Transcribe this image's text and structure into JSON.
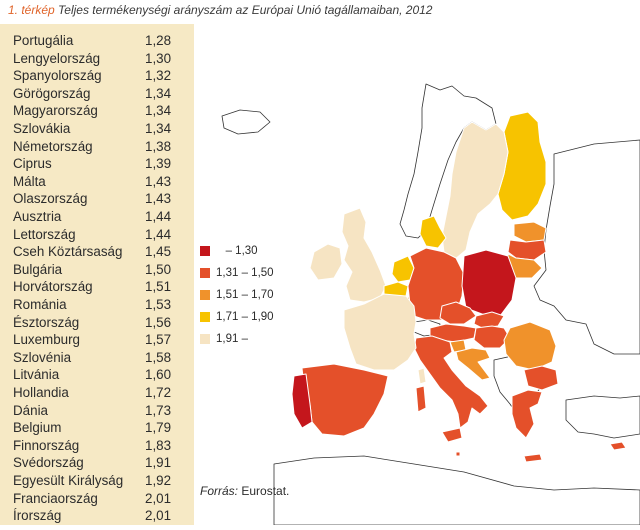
{
  "caption": {
    "number": "1. térkép",
    "title": "Teljes termékenységi arányszám az Európai Unió tagállamaiban, 2012"
  },
  "countries": [
    {
      "name": "Portugália",
      "value": "1,28"
    },
    {
      "name": "Lengyelország",
      "value": "1,30"
    },
    {
      "name": "Spanyolország",
      "value": "1,32"
    },
    {
      "name": "Görögország",
      "value": "1,34"
    },
    {
      "name": "Magyarország",
      "value": "1,34"
    },
    {
      "name": "Szlovákia",
      "value": "1,34"
    },
    {
      "name": "Németország",
      "value": "1,38"
    },
    {
      "name": "Ciprus",
      "value": "1,39"
    },
    {
      "name": "Málta",
      "value": "1,43"
    },
    {
      "name": "Olaszország",
      "value": "1,43"
    },
    {
      "name": "Ausztria",
      "value": "1,44"
    },
    {
      "name": "Lettország",
      "value": "1,44"
    },
    {
      "name": "Cseh Köztársaság",
      "value": "1,45"
    },
    {
      "name": "Bulgária",
      "value": "1,50"
    },
    {
      "name": "Horvátország",
      "value": "1,51"
    },
    {
      "name": "Románia",
      "value": "1,53"
    },
    {
      "name": "Észtország",
      "value": "1,56"
    },
    {
      "name": "Luxemburg",
      "value": "1,57"
    },
    {
      "name": "Szlovénia",
      "value": "1,58"
    },
    {
      "name": "Litvánia",
      "value": "1,60"
    },
    {
      "name": "Hollandia",
      "value": "1,72"
    },
    {
      "name": "Dánia",
      "value": "1,73"
    },
    {
      "name": "Belgium",
      "value": "1,79"
    },
    {
      "name": "Finnország",
      "value": "1,83"
    },
    {
      "name": "Svédország",
      "value": "1,91"
    },
    {
      "name": "Egyesült Királyság",
      "value": "1,92"
    },
    {
      "name": "Franciaország",
      "value": "2,01"
    },
    {
      "name": "Írország",
      "value": "2,01"
    }
  ],
  "legend": [
    {
      "label": "   – 1,30",
      "color": "#c4161c"
    },
    {
      "label": "1,31 – 1,50",
      "color": "#e4502a"
    },
    {
      "label": "1,51 – 1,70",
      "color": "#f0922b"
    },
    {
      "label": "1,71 – 1,90",
      "color": "#f7c300"
    },
    {
      "label": "1,91 –",
      "color": "#f6e4c3"
    }
  ],
  "source": {
    "label": "Forrás:",
    "text": " Eurostat."
  }
}
